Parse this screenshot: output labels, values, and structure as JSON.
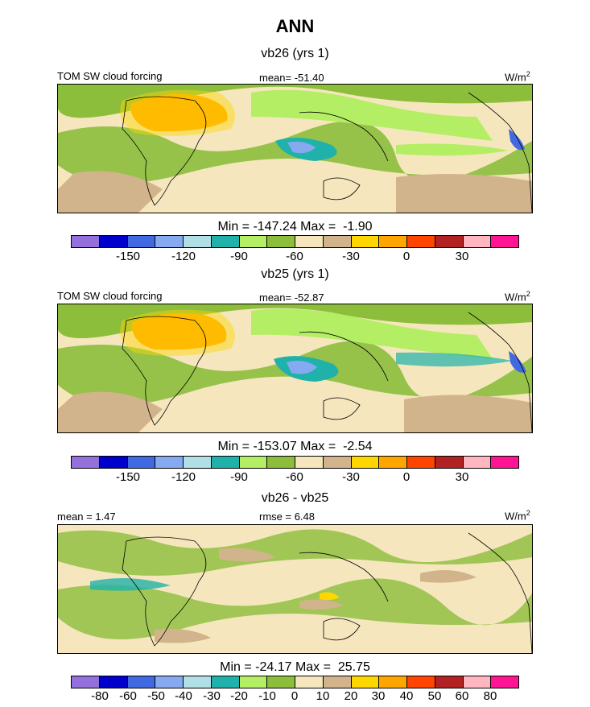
{
  "title": "ANN",
  "panels": [
    {
      "subtitle": "vb26 (yrs 1)",
      "left_label": "TOM SW cloud forcing",
      "center_label": "mean= -51.40",
      "units": "W/m",
      "units_sup": "2",
      "minmax": "Min = -147.24 Max =  -1.90"
    },
    {
      "subtitle": "vb25 (yrs 1)",
      "left_label": "TOM SW cloud forcing",
      "center_label": "mean= -52.87",
      "units": "W/m",
      "units_sup": "2",
      "minmax": "Min = -153.07 Max =  -2.54"
    },
    {
      "subtitle": "vb26 - vb25",
      "left_label": "mean =   1.47",
      "center_label": "rmse =   6.48",
      "units": "W/m",
      "units_sup": "2",
      "minmax": "Min = -24.17 Max =  25.75"
    }
  ],
  "colorbar_colors": [
    "#9370db",
    "#0000cd",
    "#4169e1",
    "#87a9f0",
    "#b0e0e6",
    "#20b2aa",
    "#b4ee64",
    "#8cbe3c",
    "#f5e6be",
    "#d2b48c",
    "#ffd700",
    "#ffa500",
    "#ff4500",
    "#b22222",
    "#ffb6c1",
    "#ff1493"
  ],
  "colorbar1_ticks": [
    "-150",
    "-120",
    "-90",
    "-60",
    "-30",
    "0",
    "30"
  ],
  "colorbar2_ticks": [
    "-150",
    "-120",
    "-90",
    "-60",
    "-30",
    "0",
    "30"
  ],
  "colorbar3_ticks": [
    "-80",
    "-60",
    "-50",
    "-40",
    "-30",
    "-20",
    "-10",
    "0",
    "10",
    "20",
    "30",
    "40",
    "50",
    "60",
    "80"
  ]
}
